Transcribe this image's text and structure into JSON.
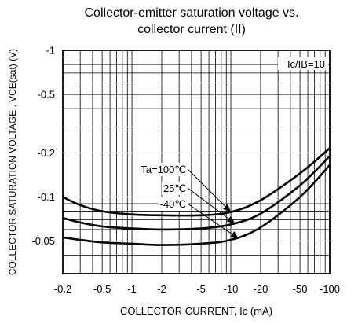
{
  "chart_data": {
    "type": "line",
    "title_line1": "Collector-emitter saturation voltage vs.",
    "title_line2": "collector current (II)",
    "xlabel": "COLLECTOR CURRENT, Ic (mA)",
    "ylabel": "COLLECTOR SATURATION VOLTAGE , VCE(sat) (V)",
    "x_scale": "log",
    "y_scale": "log",
    "xlim": [
      -0.2,
      -100
    ],
    "ylim": [
      -0.03,
      -1
    ],
    "x_ticks": [
      -0.2,
      -0.5,
      -1,
      -2,
      -5,
      -10,
      -20,
      -50,
      -100
    ],
    "x_tick_labels": [
      "-0.2",
      "-0.5",
      "-1",
      "-2",
      "-5",
      "-10",
      "-20",
      "-50",
      "-100"
    ],
    "y_ticks": [
      -1,
      -0.5,
      -0.2,
      -0.1,
      -0.05
    ],
    "y_tick_labels": [
      "-1",
      "-0.5",
      "-0.2",
      "-0.1",
      "-0.05"
    ],
    "grid": true,
    "condition_label": "Ic/IB=10",
    "series": [
      {
        "name": "Ta=100℃",
        "x": [
          -0.2,
          -0.3,
          -0.5,
          -1,
          -2,
          -5,
          -10,
          -20,
          -50,
          -100
        ],
        "y": [
          -0.1,
          -0.088,
          -0.08,
          -0.076,
          -0.075,
          -0.075,
          -0.079,
          -0.095,
          -0.145,
          -0.215
        ]
      },
      {
        "name": "25℃",
        "x": [
          -0.2,
          -0.3,
          -0.5,
          -1,
          -2,
          -5,
          -10,
          -20,
          -50,
          -100
        ],
        "y": [
          -0.072,
          -0.067,
          -0.063,
          -0.061,
          -0.06,
          -0.061,
          -0.065,
          -0.077,
          -0.12,
          -0.19
        ]
      },
      {
        "name": "-40℃",
        "x": [
          -0.2,
          -0.3,
          -0.5,
          -1,
          -2,
          -5,
          -10,
          -20,
          -50,
          -100
        ],
        "y": [
          -0.053,
          -0.051,
          -0.049,
          -0.048,
          -0.047,
          -0.048,
          -0.051,
          -0.062,
          -0.1,
          -0.165
        ]
      }
    ]
  }
}
